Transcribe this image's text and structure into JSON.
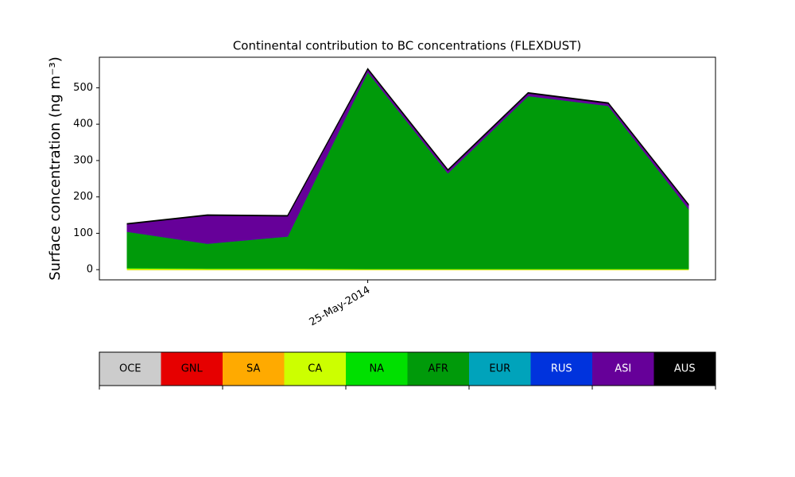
{
  "chart_data": {
    "type": "stackplot",
    "title": "Continental contribution to BC concentrations (FLEXDUST)",
    "y_label": "Surface concentration (ng m⁻³)",
    "categories": [
      null,
      null,
      null,
      "25-May-2014",
      null,
      null,
      null,
      null
    ],
    "ylim": [
      -28,
      584
    ],
    "yticks": [
      0,
      100,
      200,
      300,
      400,
      500
    ],
    "series": [
      {
        "name": "OCE",
        "color": "#cccccc",
        "values": [
          0,
          0,
          0,
          0,
          0,
          0,
          0,
          0
        ]
      },
      {
        "name": "GNL",
        "color": "#e60000",
        "values": [
          0,
          0,
          0,
          0,
          0,
          0,
          0,
          0
        ]
      },
      {
        "name": "SA",
        "color": "#ffaa00",
        "values": [
          0,
          0,
          0,
          0,
          0,
          0,
          0,
          0
        ]
      },
      {
        "name": "CA",
        "color": "#ccff00",
        "values": [
          4,
          3,
          3,
          2,
          2,
          2,
          2,
          2
        ]
      },
      {
        "name": "NA",
        "color": "#00e000",
        "values": [
          1,
          1,
          1,
          1,
          1,
          1,
          1,
          1
        ]
      },
      {
        "name": "AFR",
        "color": "#009a0a",
        "values": [
          100,
          68,
          88,
          541,
          263,
          475,
          448,
          165
        ]
      },
      {
        "name": "EUR",
        "color": "#00a3bb",
        "values": [
          0,
          0,
          0,
          0,
          0,
          0,
          0,
          0
        ]
      },
      {
        "name": "RUS",
        "color": "#0033dd",
        "values": [
          0,
          0,
          0,
          0,
          0,
          0,
          0,
          0
        ]
      },
      {
        "name": "ASI",
        "color": "#660099",
        "values": [
          20,
          77,
          55,
          7,
          7,
          7,
          6,
          10
        ]
      },
      {
        "name": "AUS",
        "color": "#000000",
        "values": [
          2,
          2,
          2,
          2,
          2,
          2,
          2,
          2
        ]
      }
    ]
  }
}
